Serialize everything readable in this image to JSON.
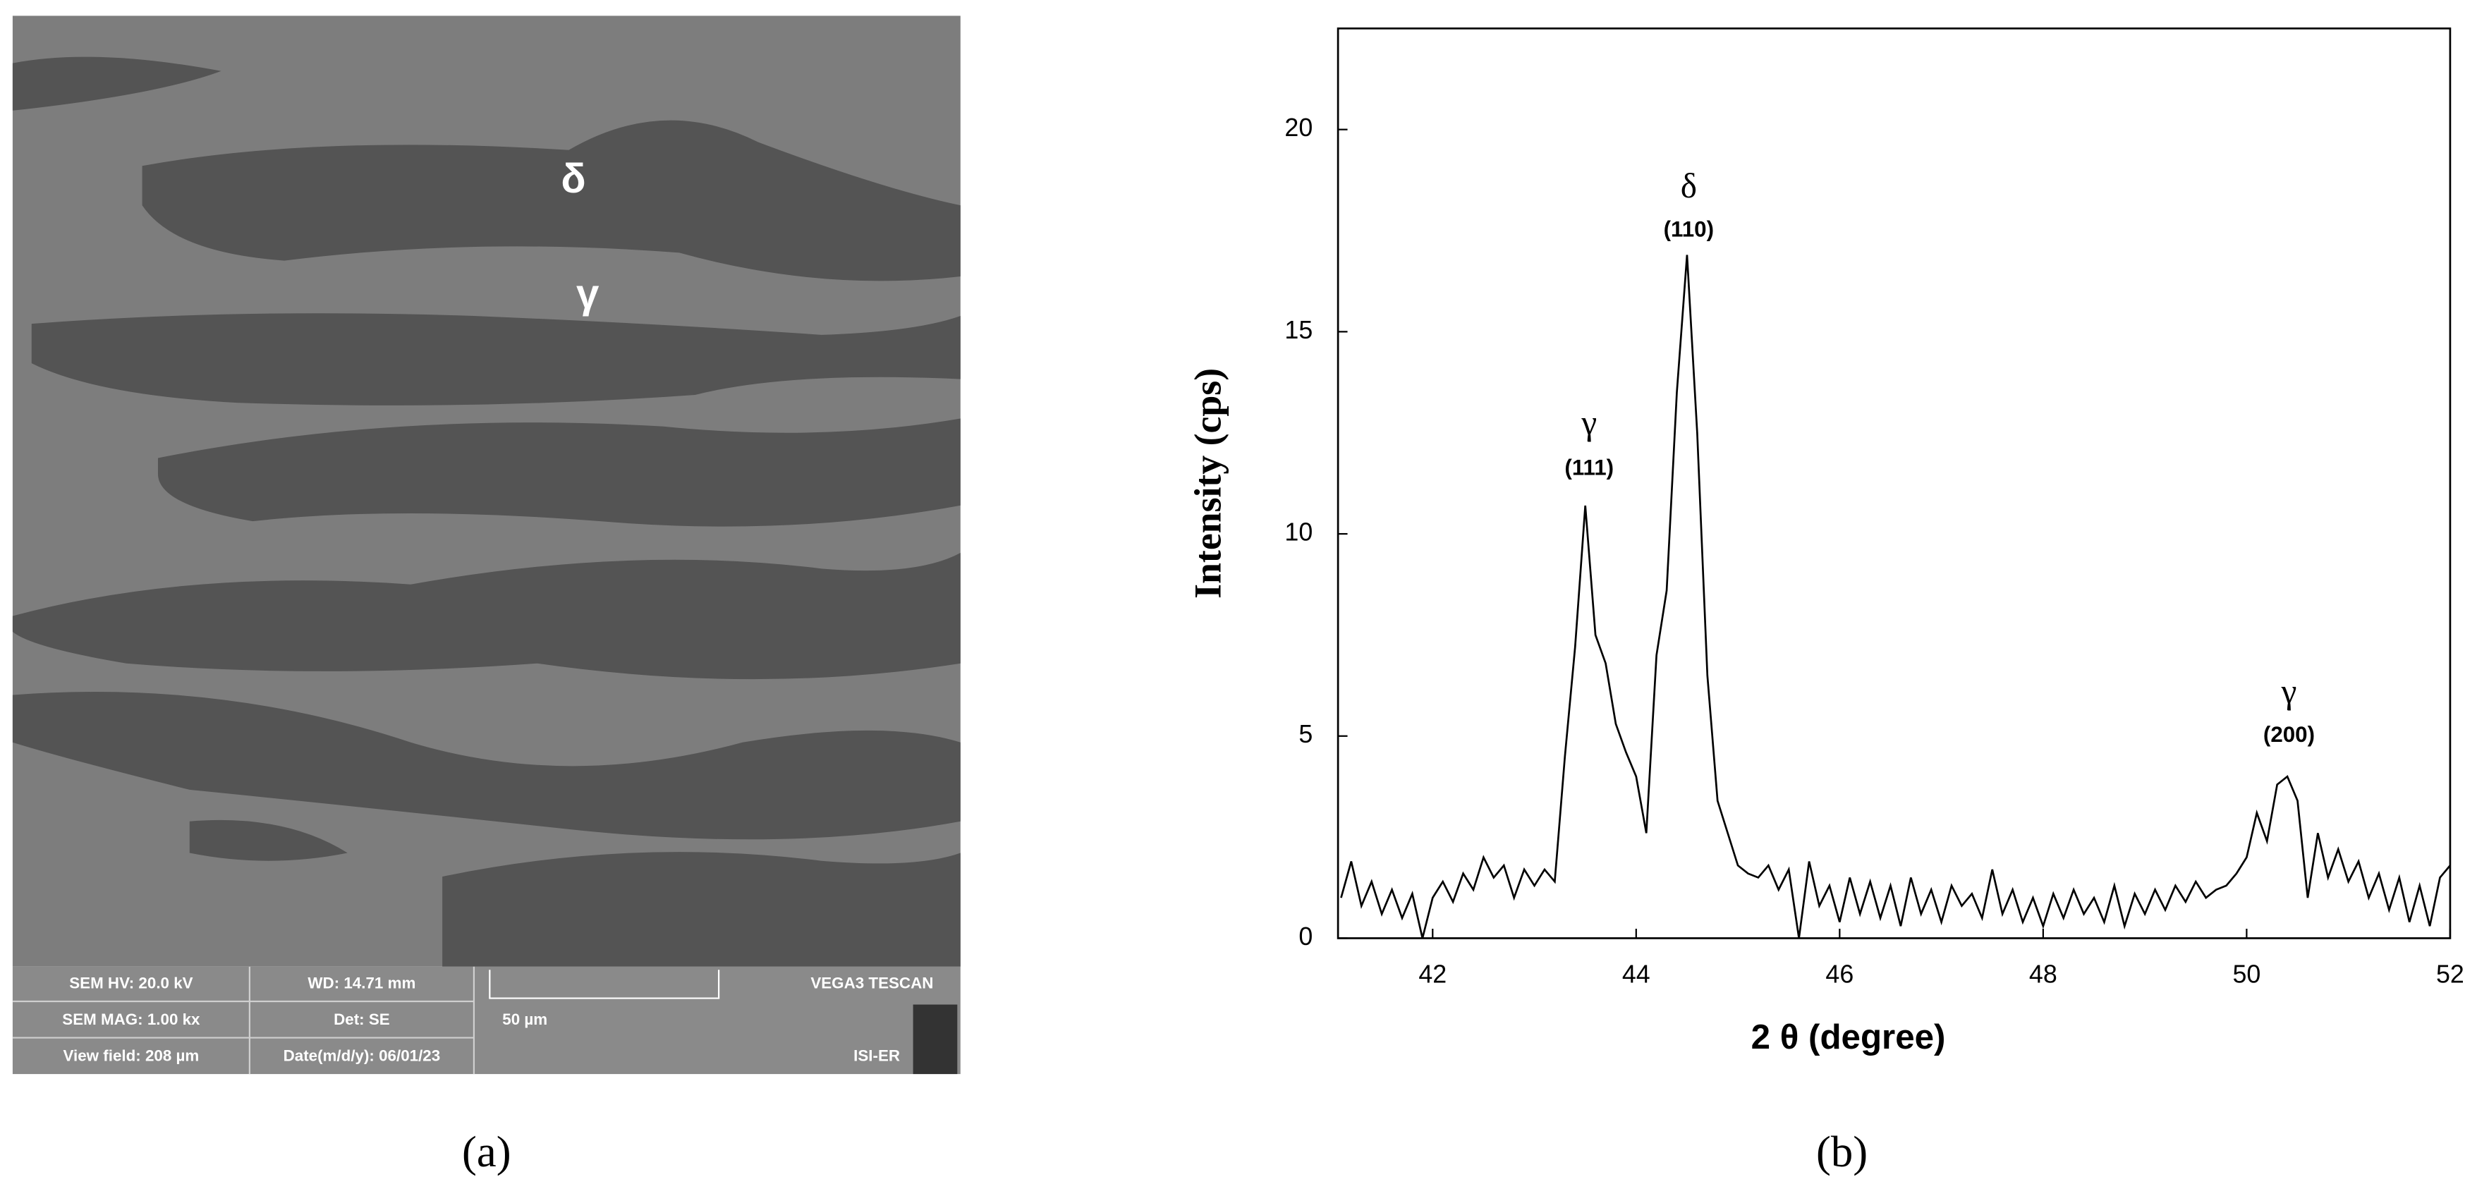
{
  "sem_image": {
    "phase_labels": [
      "δ",
      "γ"
    ],
    "info_bar": {
      "hv": "SEM HV: 20.0 kV",
      "wd": "WD: 14.71 mm",
      "brand": "VEGA3 TESCAN",
      "mag": "SEM MAG: 1.00 kx",
      "det": "Det: SE",
      "scale": "50 µm",
      "view_field": "View field: 208 µm",
      "date": "Date(m/d/y): 06/01/23",
      "lab": "ISI-ER"
    }
  },
  "captions": [
    "(a)",
    "(b)"
  ],
  "chart_data": {
    "type": "line",
    "x_label": "2 θ (degree)",
    "y_label": "Intensity (cps)",
    "color": "#000000",
    "x": [
      41.1,
      41.2,
      41.3,
      41.4,
      41.5,
      41.6,
      41.7,
      41.8,
      41.9,
      42.0,
      42.1,
      42.2,
      42.3,
      42.4,
      42.5,
      42.6,
      42.7,
      42.8,
      42.9,
      43.0,
      43.1,
      43.2,
      43.3,
      43.4,
      43.5,
      43.6,
      43.7,
      43.8,
      43.9,
      44.0,
      44.1,
      44.2,
      44.3,
      44.4,
      44.5,
      44.6,
      44.7,
      44.8,
      44.9,
      45.0,
      45.1,
      45.2,
      45.3,
      45.4,
      45.5,
      45.6,
      45.7,
      45.8,
      45.9,
      46.0,
      46.1,
      46.2,
      46.3,
      46.4,
      46.5,
      46.6,
      46.7,
      46.8,
      46.9,
      47.0,
      47.1,
      47.2,
      47.3,
      47.4,
      47.5,
      47.6,
      47.7,
      47.8,
      47.9,
      48.0,
      48.1,
      48.2,
      48.3,
      48.4,
      48.5,
      48.6,
      48.7,
      48.8,
      48.9,
      49.0,
      49.1,
      49.2,
      49.3,
      49.4,
      49.5,
      49.6,
      49.7,
      49.8,
      49.9,
      50.0,
      50.1,
      50.2,
      50.3,
      50.4,
      50.5,
      50.6,
      50.7,
      50.8,
      50.9,
      51.0,
      51.1,
      51.2,
      51.3,
      51.4,
      51.5,
      51.6,
      51.7,
      51.8,
      51.9,
      52.0
    ],
    "values": [
      1.0,
      1.9,
      0.8,
      1.4,
      0.6,
      1.2,
      0.5,
      1.1,
      0.0,
      1.0,
      1.4,
      0.9,
      1.6,
      1.2,
      2.0,
      1.5,
      1.8,
      1.0,
      1.7,
      1.3,
      1.7,
      1.4,
      4.5,
      7.2,
      10.7,
      7.5,
      6.8,
      5.3,
      4.6,
      4.0,
      2.6,
      7.0,
      8.6,
      13.5,
      16.9,
      12.5,
      6.5,
      3.4,
      2.6,
      1.8,
      1.6,
      1.5,
      1.8,
      1.2,
      1.7,
      0.0,
      1.9,
      0.8,
      1.3,
      0.4,
      1.5,
      0.6,
      1.4,
      0.5,
      1.3,
      0.3,
      1.5,
      0.6,
      1.2,
      0.4,
      1.3,
      0.8,
      1.1,
      0.5,
      1.7,
      0.6,
      1.2,
      0.4,
      1.0,
      0.3,
      1.1,
      0.5,
      1.2,
      0.6,
      1.0,
      0.4,
      1.3,
      0.3,
      1.1,
      0.6,
      1.2,
      0.7,
      1.3,
      0.9,
      1.4,
      1.0,
      1.2,
      1.3,
      1.6,
      2.0,
      3.1,
      2.4,
      3.8,
      4.0,
      3.4,
      1.0,
      2.6,
      1.5,
      2.2,
      1.4,
      1.9,
      1.0,
      1.6,
      0.7,
      1.5,
      0.4,
      1.3,
      0.3,
      1.5,
      1.8
    ],
    "xlim": [
      41.07,
      52
    ],
    "ylim": [
      0,
      22.5
    ],
    "xticks": [
      42,
      44,
      46,
      48,
      50,
      52
    ],
    "yticks": [
      0,
      5,
      10,
      15,
      20
    ],
    "annotations": [
      {
        "symbol": "γ",
        "label": "(111)"
      },
      {
        "symbol": "δ",
        "label": "(110)"
      },
      {
        "symbol": "γ",
        "label": "(200)"
      }
    ]
  }
}
